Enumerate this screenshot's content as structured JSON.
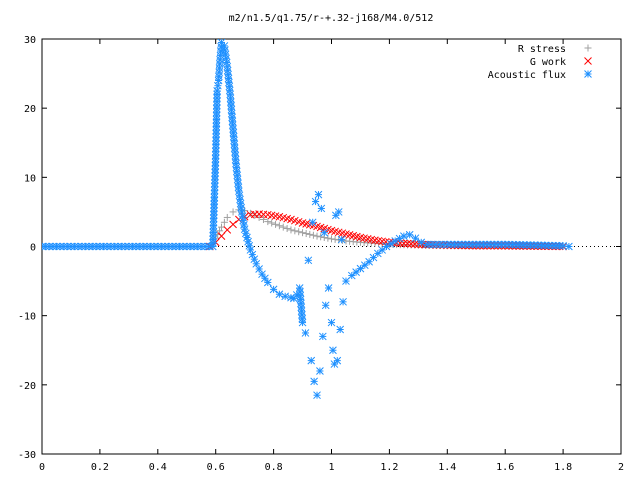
{
  "chart_data": {
    "type": "scatter",
    "title": "m2/n1.5/q1.75/r-+.32-j168/M4.0/512",
    "xlim": [
      0,
      2
    ],
    "ylim": [
      -30,
      30
    ],
    "x_ticks": [
      "0",
      "0.2",
      "0.4",
      "0.6",
      "0.8",
      "1",
      "1.2",
      "1.4",
      "1.6",
      "1.8",
      "2"
    ],
    "x_tick_values": [
      0,
      0.2,
      0.4,
      0.6,
      0.8,
      1.0,
      1.2,
      1.4,
      1.6,
      1.8,
      2.0
    ],
    "y_ticks": [
      "-30",
      "-20",
      "-10",
      "0",
      "10",
      "20",
      "30"
    ],
    "y_tick_values": [
      -30,
      -20,
      -10,
      0,
      10,
      20,
      30
    ],
    "legend_position": "top-right",
    "series": [
      {
        "name": "R stress",
        "color": "#a0a0a0",
        "marker": "plus",
        "points": [
          [
            0.58,
            0
          ],
          [
            0.6,
            1.2
          ],
          [
            0.62,
            2.8
          ],
          [
            0.64,
            4.2
          ],
          [
            0.66,
            5.0
          ],
          [
            0.68,
            5.3
          ],
          [
            0.7,
            5.2
          ],
          [
            0.72,
            4.8
          ],
          [
            0.75,
            4.2
          ],
          [
            0.78,
            3.6
          ],
          [
            0.82,
            3.0
          ],
          [
            0.86,
            2.4
          ],
          [
            0.9,
            2.0
          ],
          [
            0.95,
            1.5
          ],
          [
            1.0,
            1.1
          ],
          [
            1.05,
            0.8
          ],
          [
            1.1,
            0.6
          ],
          [
            1.2,
            0.3
          ],
          [
            1.3,
            0.2
          ],
          [
            1.4,
            0.1
          ],
          [
            1.5,
            0.1
          ],
          [
            1.6,
            0.05
          ],
          [
            1.7,
            0.05
          ],
          [
            1.8,
            0.0
          ]
        ]
      },
      {
        "name": "G work",
        "color": "#ff0000",
        "marker": "cross",
        "points": [
          [
            0.58,
            0
          ],
          [
            0.6,
            0.6
          ],
          [
            0.62,
            1.5
          ],
          [
            0.64,
            2.4
          ],
          [
            0.66,
            3.2
          ],
          [
            0.68,
            3.9
          ],
          [
            0.7,
            4.3
          ],
          [
            0.72,
            4.6
          ],
          [
            0.75,
            4.7
          ],
          [
            0.78,
            4.6
          ],
          [
            0.82,
            4.3
          ],
          [
            0.86,
            3.9
          ],
          [
            0.9,
            3.4
          ],
          [
            0.95,
            2.9
          ],
          [
            1.0,
            2.3
          ],
          [
            1.05,
            1.8
          ],
          [
            1.1,
            1.3
          ],
          [
            1.15,
            0.9
          ],
          [
            1.2,
            0.6
          ],
          [
            1.3,
            0.3
          ],
          [
            1.4,
            0.2
          ],
          [
            1.5,
            0.1
          ],
          [
            1.6,
            0.1
          ],
          [
            1.7,
            0.05
          ],
          [
            1.8,
            0.0
          ]
        ]
      },
      {
        "name": "Acoustic flux",
        "color": "#1e90ff",
        "marker": "star",
        "points": [
          [
            0,
            0
          ],
          [
            0.05,
            0
          ],
          [
            0.1,
            0
          ],
          [
            0.15,
            0
          ],
          [
            0.2,
            0
          ],
          [
            0.25,
            0
          ],
          [
            0.3,
            0
          ],
          [
            0.35,
            0
          ],
          [
            0.4,
            0
          ],
          [
            0.45,
            0
          ],
          [
            0.5,
            0
          ],
          [
            0.55,
            0
          ],
          [
            0.59,
            0
          ],
          [
            0.6,
            13.2
          ],
          [
            0.605,
            22.5
          ],
          [
            0.61,
            24.0
          ],
          [
            0.615,
            27.0
          ],
          [
            0.62,
            29.5
          ],
          [
            0.63,
            29.0
          ],
          [
            0.64,
            26.0
          ],
          [
            0.65,
            22.0
          ],
          [
            0.66,
            17.0
          ],
          [
            0.67,
            12.0
          ],
          [
            0.68,
            8.0
          ],
          [
            0.69,
            5.0
          ],
          [
            0.7,
            2.5
          ],
          [
            0.72,
            -0.5
          ],
          [
            0.74,
            -2.5
          ],
          [
            0.76,
            -4.0
          ],
          [
            0.78,
            -5.2
          ],
          [
            0.8,
            -6.2
          ],
          [
            0.82,
            -6.9
          ],
          [
            0.84,
            -7.2
          ],
          [
            0.86,
            -7.4
          ],
          [
            0.87,
            -7.5
          ],
          [
            0.88,
            -7.0
          ],
          [
            0.89,
            -6.0
          ],
          [
            0.9,
            -11.0
          ],
          [
            0.91,
            -12.5
          ],
          [
            0.92,
            -2.0
          ],
          [
            0.93,
            -16.5
          ],
          [
            0.935,
            3.5
          ],
          [
            0.94,
            -19.5
          ],
          [
            0.945,
            6.5
          ],
          [
            0.95,
            -21.5
          ],
          [
            0.955,
            7.5
          ],
          [
            0.96,
            -18.0
          ],
          [
            0.965,
            5.5
          ],
          [
            0.97,
            -13.0
          ],
          [
            0.975,
            2.0
          ],
          [
            0.98,
            -8.5
          ],
          [
            0.99,
            -6.0
          ],
          [
            1.0,
            -11.0
          ],
          [
            1.005,
            -15.0
          ],
          [
            1.01,
            -17.0
          ],
          [
            1.015,
            4.5
          ],
          [
            1.02,
            -16.5
          ],
          [
            1.025,
            5.0
          ],
          [
            1.03,
            -12.0
          ],
          [
            1.035,
            1.0
          ],
          [
            1.04,
            -8.0
          ],
          [
            1.05,
            -5.0
          ],
          [
            1.07,
            -4.2
          ],
          [
            1.1,
            -3.2
          ],
          [
            1.13,
            -2.2
          ],
          [
            1.16,
            -1.0
          ],
          [
            1.19,
            0.0
          ],
          [
            1.22,
            0.8
          ],
          [
            1.25,
            1.5
          ],
          [
            1.27,
            1.7
          ],
          [
            1.29,
            1.2
          ],
          [
            1.31,
            0.6
          ],
          [
            1.33,
            0.3
          ],
          [
            1.4,
            0.3
          ],
          [
            1.5,
            0.3
          ],
          [
            1.6,
            0.3
          ],
          [
            1.7,
            0.2
          ],
          [
            1.8,
            0.1
          ],
          [
            1.82,
            0.0
          ]
        ]
      }
    ]
  }
}
